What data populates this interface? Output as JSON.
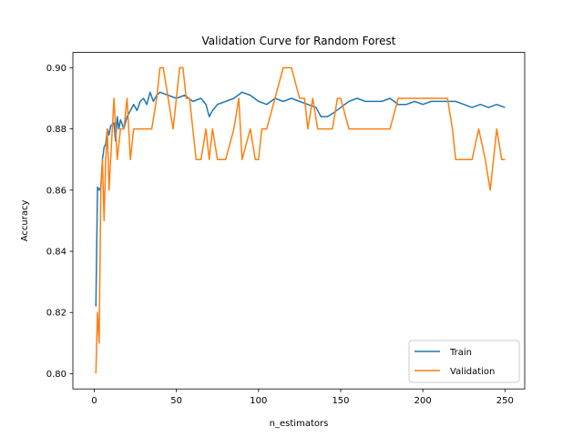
{
  "chart_data": {
    "type": "line",
    "title": "Validation Curve for Random Forest",
    "xlabel": "n_estimators",
    "ylabel": "Accuracy",
    "xlim": [
      -13,
      262
    ],
    "ylim": [
      0.795,
      0.905
    ],
    "x_ticks": [
      0,
      50,
      100,
      150,
      200,
      250
    ],
    "y_ticks": [
      0.8,
      0.82,
      0.84,
      0.86,
      0.88,
      0.9
    ],
    "y_tick_labels": [
      "0.80",
      "0.82",
      "0.84",
      "0.86",
      "0.88",
      "0.90"
    ],
    "grid": false,
    "legend": {
      "placement": "lower-right"
    },
    "x": {
      "start": 1,
      "end": 250,
      "step": 1
    },
    "series": [
      {
        "name": "Train",
        "color": "#1f77b4",
        "keypoints": [
          [
            1,
            0.822
          ],
          [
            2,
            0.861
          ],
          [
            3,
            0.86
          ],
          [
            4,
            0.861
          ],
          [
            5,
            0.87
          ],
          [
            6,
            0.874
          ],
          [
            7,
            0.875
          ],
          [
            8,
            0.88
          ],
          [
            9,
            0.878
          ],
          [
            10,
            0.881
          ],
          [
            12,
            0.882
          ],
          [
            13,
            0.876
          ],
          [
            14,
            0.884
          ],
          [
            15,
            0.88
          ],
          [
            16,
            0.883
          ],
          [
            18,
            0.88
          ],
          [
            20,
            0.884
          ],
          [
            22,
            0.886
          ],
          [
            24,
            0.888
          ],
          [
            26,
            0.886
          ],
          [
            28,
            0.889
          ],
          [
            30,
            0.89
          ],
          [
            32,
            0.888
          ],
          [
            34,
            0.892
          ],
          [
            36,
            0.889
          ],
          [
            38,
            0.891
          ],
          [
            40,
            0.892
          ],
          [
            45,
            0.891
          ],
          [
            50,
            0.89
          ],
          [
            55,
            0.891
          ],
          [
            60,
            0.889
          ],
          [
            65,
            0.89
          ],
          [
            68,
            0.888
          ],
          [
            70,
            0.884
          ],
          [
            72,
            0.886
          ],
          [
            75,
            0.888
          ],
          [
            80,
            0.889
          ],
          [
            85,
            0.89
          ],
          [
            90,
            0.892
          ],
          [
            95,
            0.891
          ],
          [
            100,
            0.889
          ],
          [
            105,
            0.888
          ],
          [
            110,
            0.89
          ],
          [
            115,
            0.889
          ],
          [
            120,
            0.89
          ],
          [
            125,
            0.889
          ],
          [
            130,
            0.888
          ],
          [
            135,
            0.887
          ],
          [
            138,
            0.884
          ],
          [
            142,
            0.884
          ],
          [
            145,
            0.885
          ],
          [
            150,
            0.887
          ],
          [
            155,
            0.889
          ],
          [
            160,
            0.89
          ],
          [
            165,
            0.889
          ],
          [
            170,
            0.889
          ],
          [
            175,
            0.889
          ],
          [
            180,
            0.89
          ],
          [
            185,
            0.888
          ],
          [
            190,
            0.888
          ],
          [
            195,
            0.889
          ],
          [
            200,
            0.888
          ],
          [
            205,
            0.889
          ],
          [
            210,
            0.889
          ],
          [
            215,
            0.889
          ],
          [
            220,
            0.889
          ],
          [
            225,
            0.888
          ],
          [
            230,
            0.887
          ],
          [
            235,
            0.888
          ],
          [
            240,
            0.887
          ],
          [
            245,
            0.888
          ],
          [
            250,
            0.887
          ]
        ]
      },
      {
        "name": "Validation",
        "color": "#ff7f0e",
        "keypoints": [
          [
            1,
            0.8
          ],
          [
            2,
            0.82
          ],
          [
            3,
            0.81
          ],
          [
            4,
            0.86
          ],
          [
            5,
            0.87
          ],
          [
            6,
            0.85
          ],
          [
            7,
            0.87
          ],
          [
            8,
            0.88
          ],
          [
            9,
            0.86
          ],
          [
            10,
            0.87
          ],
          [
            12,
            0.89
          ],
          [
            14,
            0.87
          ],
          [
            16,
            0.88
          ],
          [
            18,
            0.88
          ],
          [
            20,
            0.89
          ],
          [
            22,
            0.87
          ],
          [
            24,
            0.88
          ],
          [
            26,
            0.88
          ],
          [
            30,
            0.88
          ],
          [
            35,
            0.88
          ],
          [
            38,
            0.89
          ],
          [
            40,
            0.9
          ],
          [
            42,
            0.9
          ],
          [
            45,
            0.89
          ],
          [
            48,
            0.88
          ],
          [
            50,
            0.89
          ],
          [
            52,
            0.9
          ],
          [
            54,
            0.9
          ],
          [
            56,
            0.89
          ],
          [
            58,
            0.89
          ],
          [
            60,
            0.88
          ],
          [
            62,
            0.87
          ],
          [
            65,
            0.87
          ],
          [
            68,
            0.88
          ],
          [
            70,
            0.87
          ],
          [
            72,
            0.88
          ],
          [
            75,
            0.87
          ],
          [
            80,
            0.87
          ],
          [
            85,
            0.88
          ],
          [
            88,
            0.89
          ],
          [
            90,
            0.87
          ],
          [
            95,
            0.88
          ],
          [
            98,
            0.87
          ],
          [
            100,
            0.87
          ],
          [
            102,
            0.88
          ],
          [
            105,
            0.88
          ],
          [
            110,
            0.89
          ],
          [
            115,
            0.9
          ],
          [
            120,
            0.9
          ],
          [
            125,
            0.89
          ],
          [
            128,
            0.89
          ],
          [
            130,
            0.88
          ],
          [
            133,
            0.89
          ],
          [
            136,
            0.88
          ],
          [
            140,
            0.88
          ],
          [
            145,
            0.88
          ],
          [
            148,
            0.89
          ],
          [
            150,
            0.89
          ],
          [
            155,
            0.88
          ],
          [
            160,
            0.88
          ],
          [
            170,
            0.88
          ],
          [
            180,
            0.88
          ],
          [
            185,
            0.89
          ],
          [
            190,
            0.89
          ],
          [
            200,
            0.89
          ],
          [
            210,
            0.89
          ],
          [
            215,
            0.89
          ],
          [
            218,
            0.88
          ],
          [
            220,
            0.87
          ],
          [
            225,
            0.87
          ],
          [
            230,
            0.87
          ],
          [
            234,
            0.88
          ],
          [
            238,
            0.87
          ],
          [
            241,
            0.86
          ],
          [
            243,
            0.87
          ],
          [
            245,
            0.88
          ],
          [
            248,
            0.87
          ],
          [
            250,
            0.87
          ]
        ]
      }
    ]
  }
}
